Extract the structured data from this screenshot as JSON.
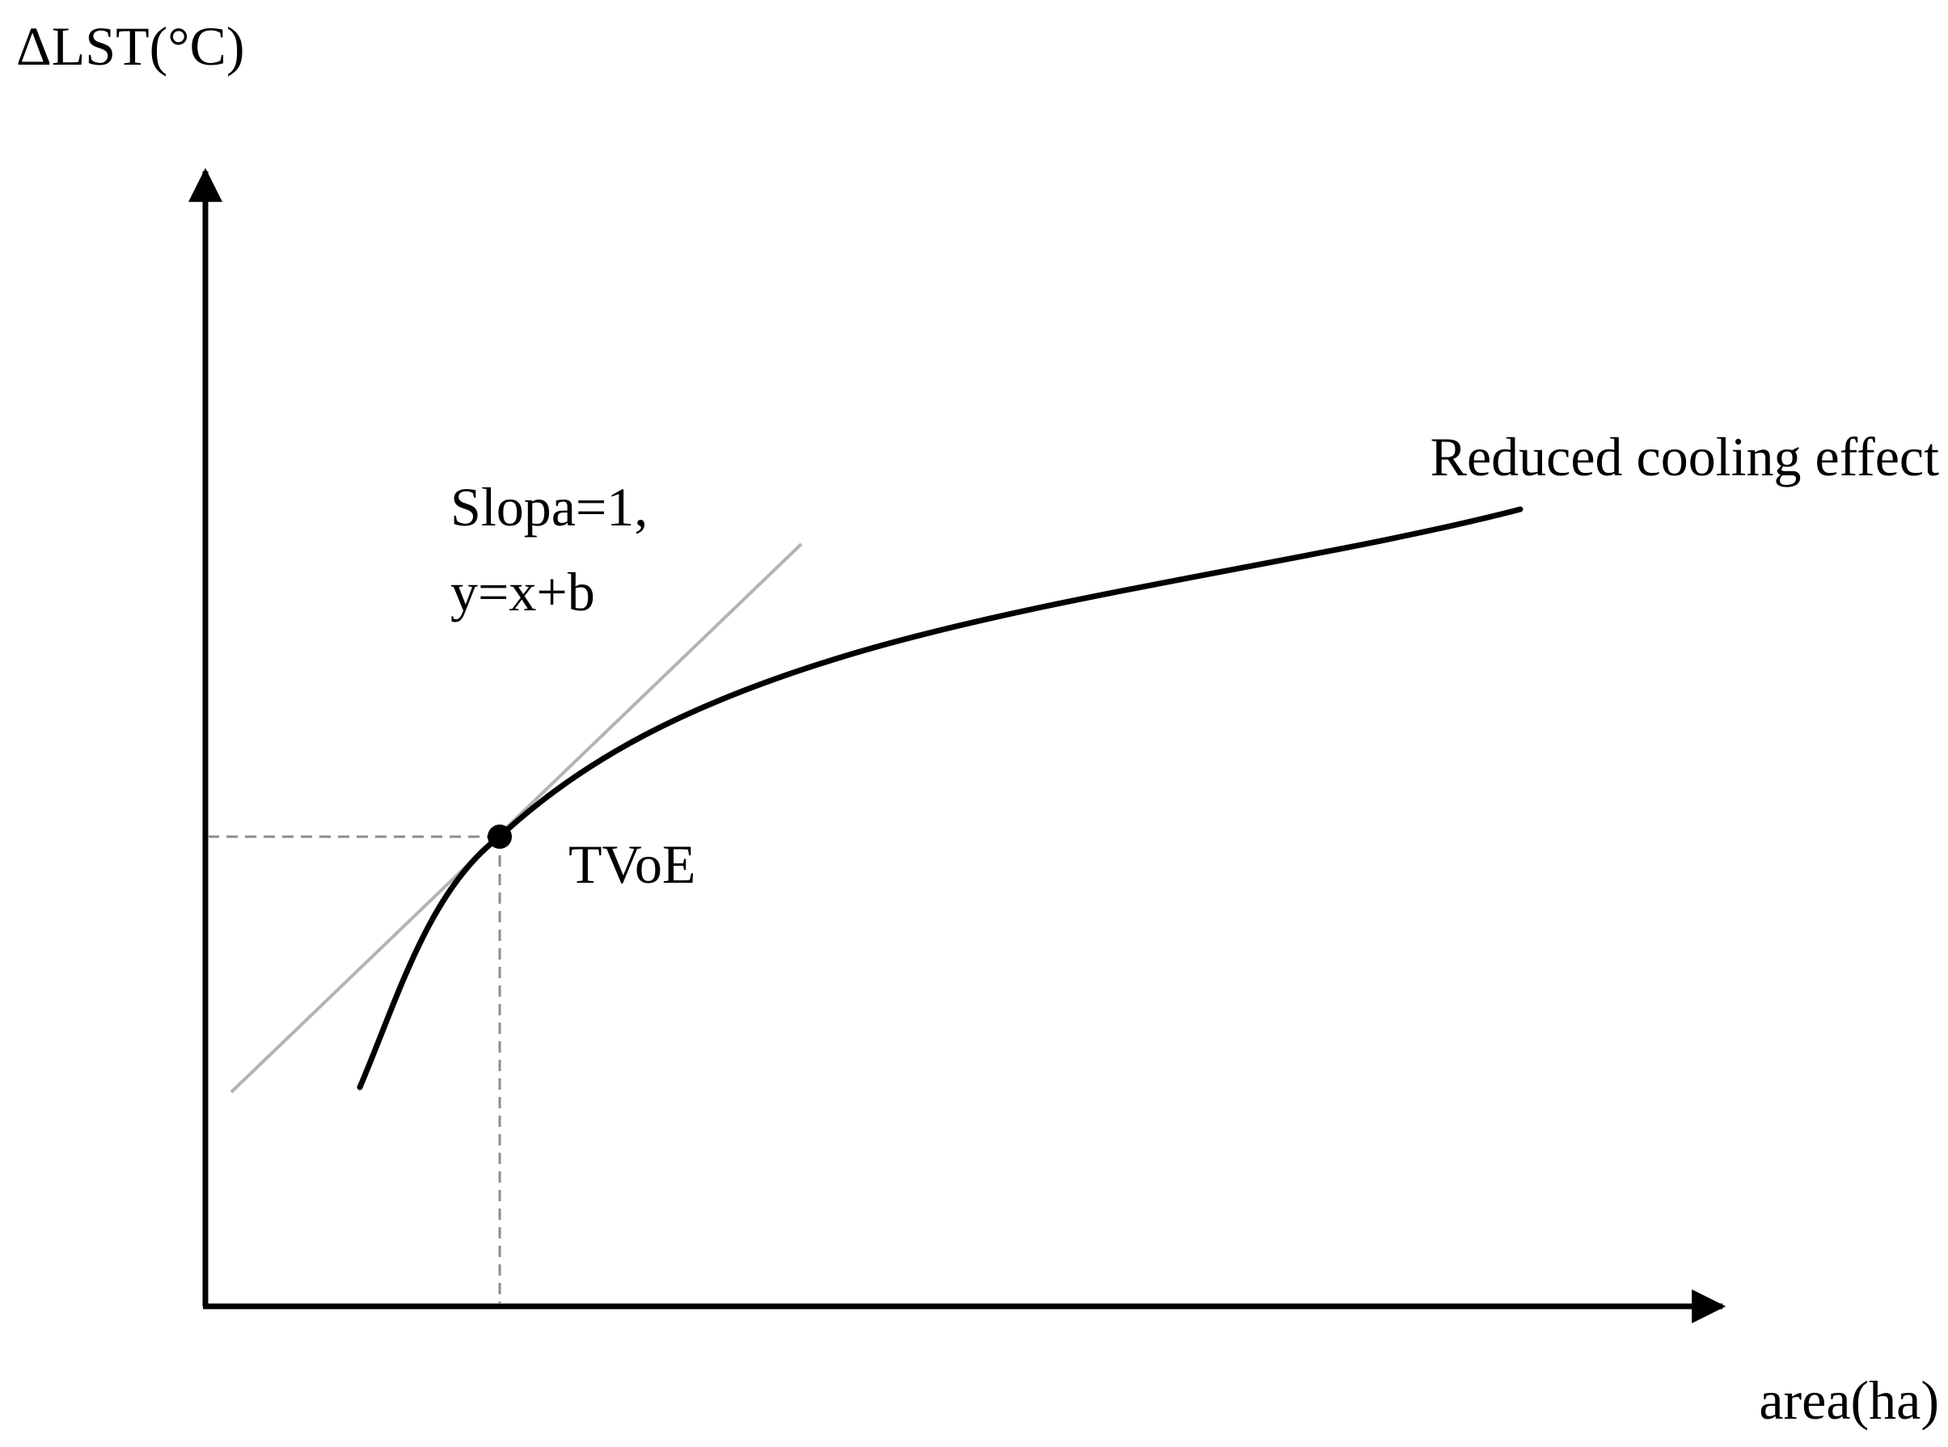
{
  "diagram": {
    "y_axis_label": "ΔLST(°C)",
    "x_axis_label": "area(ha)",
    "curve_label": "Reduced cooling effect",
    "slope_label_line1": "Slopa=1,",
    "slope_label_line2": "y=x+b",
    "point_label": "TVoE"
  },
  "colors": {
    "axis": "#000000",
    "curve": "#000000",
    "tangent": "#b3b3b3",
    "guide": "#8c8c8c",
    "point": "#000000"
  }
}
